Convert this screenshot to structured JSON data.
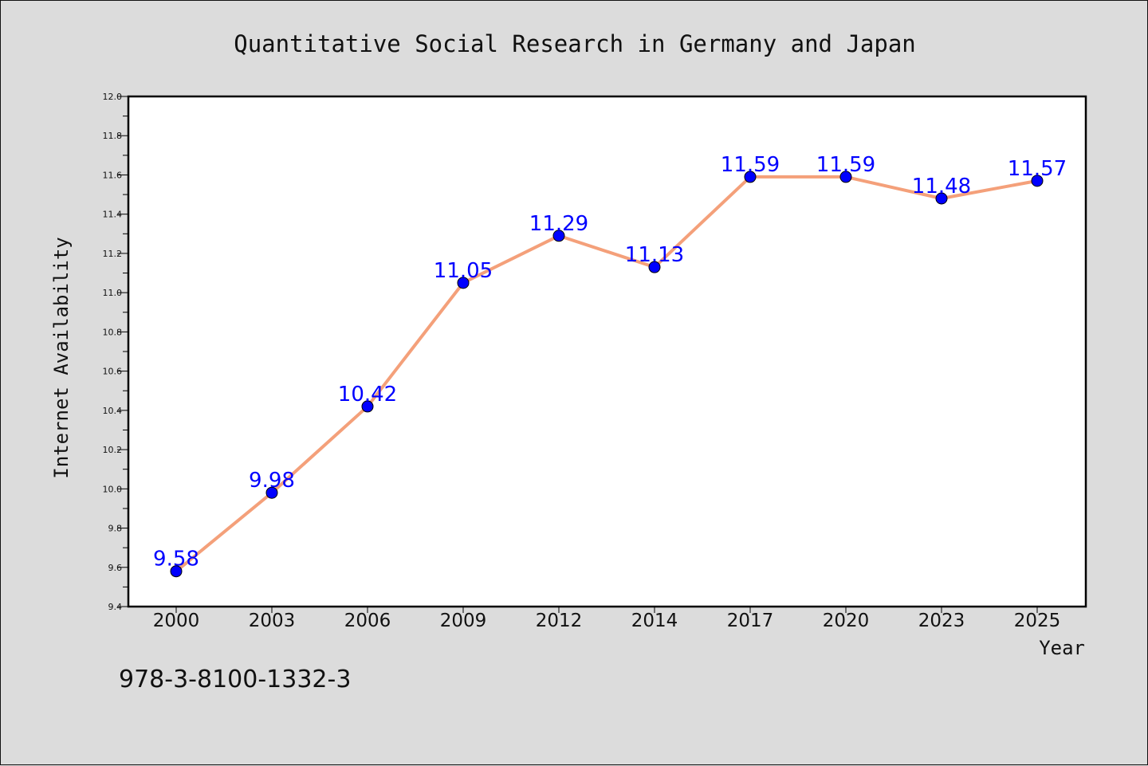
{
  "chart_data": {
    "type": "line",
    "title": "Quantitative Social Research in Germany and Japan",
    "xlabel": "Year",
    "ylabel": "Internet Availability",
    "categories": [
      "2000",
      "2003",
      "2006",
      "2009",
      "2012",
      "2014",
      "2017",
      "2020",
      "2023",
      "2025"
    ],
    "values": [
      9.58,
      9.98,
      10.42,
      11.05,
      11.29,
      11.13,
      11.59,
      11.59,
      11.48,
      11.57
    ],
    "data_labels": [
      "9.58",
      "9.98",
      "10.42",
      "11.05",
      "11.29",
      "11.13",
      "11.59",
      "11.59",
      "11.48",
      "11.57"
    ],
    "ylim": [
      9.4,
      12.0
    ],
    "yticks": [
      "9.4",
      "9.6",
      "9.8",
      "10.0",
      "10.2",
      "10.4",
      "10.6",
      "10.8",
      "11.0",
      "11.2",
      "11.4",
      "11.6",
      "11.8",
      "12.0"
    ],
    "grid": false,
    "colors": {
      "line": "#f4a07a",
      "marker": "#0000ff",
      "label": "#0000ff",
      "plot_background": "#ffffff",
      "figure_background": "#dcdcdc"
    }
  },
  "footer": {
    "code": "978-3-8100-1332-3"
  }
}
